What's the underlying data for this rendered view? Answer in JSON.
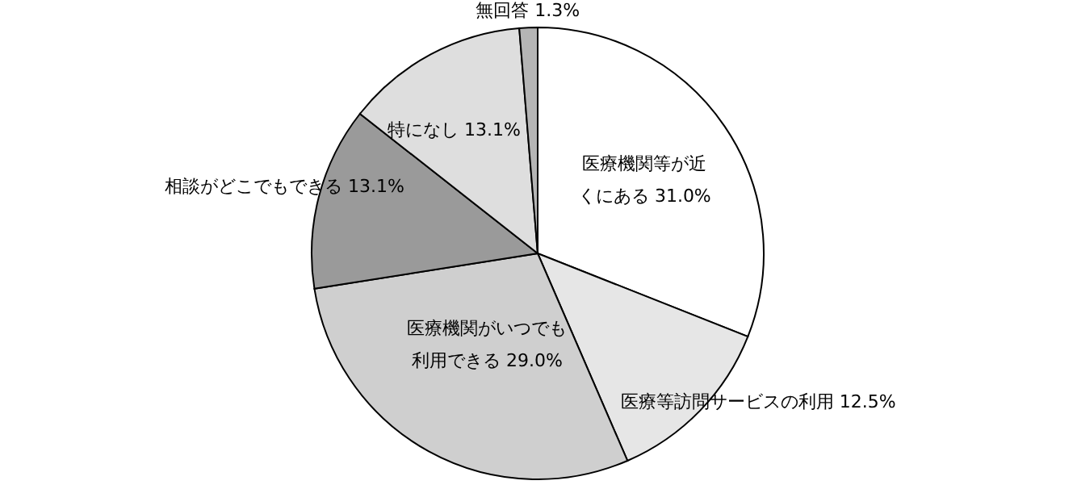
{
  "chart_data": {
    "type": "pie",
    "categories": [
      "医療機関等が近くにある",
      "医療等訪問サービスの利用",
      "医療機関がいつでも利用できる",
      "相談がどこでもできる",
      "特になし",
      "無回答"
    ],
    "values": [
      31.0,
      12.5,
      29.0,
      13.1,
      13.1,
      1.3
    ],
    "value_labels": [
      "31.0%",
      "12.5%",
      "29.0%",
      "13.1%",
      "13.1%",
      "1.3%"
    ],
    "colors": [
      "#ffffff",
      "#e6e6e6",
      "#cfcfcf",
      "#9a9a9a",
      "#dedede",
      "#b5b5b5"
    ]
  }
}
